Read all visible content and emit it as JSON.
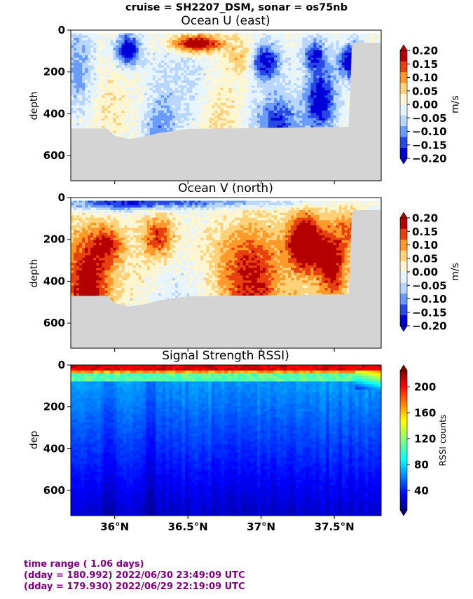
{
  "suptitle": "cruise = SH2207_DSM,  sonar = os75nb",
  "footer": {
    "line1": "time range ( 1.06 days)",
    "line2": "(dday = 180.992) 2022/06/30 23:49:09 UTC",
    "line3": "(dday = 179.930) 2022/06/29 22:19:09 UTC"
  },
  "colors": {
    "nodata": "#d4d4d4",
    "diverging_levels": [
      "#0000d8",
      "#2848e8",
      "#6a9cff",
      "#b8d6ff",
      "#e6f4ff",
      "#fff6d0",
      "#ffd27a",
      "#ff9a2a",
      "#e8400f",
      "#b40000"
    ],
    "jet": [
      "#00007f",
      "#0000ff",
      "#007fff",
      "#00ffff",
      "#7fff7f",
      "#ffff00",
      "#ff7f00",
      "#ff0000",
      "#7f0000"
    ]
  },
  "chart_data": [
    {
      "type": "heatmap",
      "title": "Ocean U (east)",
      "xlabel": "",
      "ylabel": "depth",
      "xlim": [
        35.7,
        37.82
      ],
      "ylim": [
        720,
        0
      ],
      "yticks": [
        "0",
        "200",
        "400",
        "600"
      ],
      "colorbar": {
        "label": "m/s",
        "vmin": -0.2,
        "vmax": 0.2,
        "ticks": [
          "0.20",
          "0.15",
          "0.10",
          "0.05",
          "0.00",
          "−0.05",
          "−0.10",
          "−0.15",
          "−0.20"
        ]
      },
      "bottom_depth_profile": [
        [
          35.7,
          470
        ],
        [
          35.95,
          470
        ],
        [
          36.0,
          505
        ],
        [
          36.1,
          520
        ],
        [
          36.2,
          510
        ],
        [
          36.3,
          492
        ],
        [
          36.5,
          472
        ],
        [
          37.0,
          468
        ],
        [
          37.6,
          462
        ],
        [
          37.62,
          60
        ],
        [
          37.82,
          60
        ]
      ]
    },
    {
      "type": "heatmap",
      "title": "Ocean V (north)",
      "xlabel": "",
      "ylabel": "depth",
      "xlim": [
        35.7,
        37.82
      ],
      "ylim": [
        720,
        0
      ],
      "yticks": [
        "0",
        "200",
        "400",
        "600"
      ],
      "colorbar": {
        "label": "m/s",
        "vmin": -0.2,
        "vmax": 0.2,
        "ticks": [
          "0.20",
          "0.15",
          "0.10",
          "0.05",
          "0.00",
          "−0.05",
          "−0.10",
          "−0.15",
          "−0.20"
        ]
      },
      "bottom_depth_profile": [
        [
          35.7,
          470
        ],
        [
          35.95,
          470
        ],
        [
          36.0,
          505
        ],
        [
          36.1,
          520
        ],
        [
          36.2,
          510
        ],
        [
          36.3,
          492
        ],
        [
          36.5,
          472
        ],
        [
          37.0,
          468
        ],
        [
          37.6,
          462
        ],
        [
          37.62,
          60
        ],
        [
          37.82,
          60
        ]
      ]
    },
    {
      "type": "heatmap",
      "title": "Signal Strength RSSI)",
      "xlabel": "",
      "ylabel": "dep",
      "xlim": [
        35.7,
        37.82
      ],
      "ylim": [
        720,
        0
      ],
      "yticks": [
        "0",
        "200",
        "400",
        "600"
      ],
      "xticks": [
        "36°N",
        "36.5°N",
        "37°N",
        "37.5°N"
      ],
      "colorbar": {
        "label": "RSSI counts",
        "vmin": 10,
        "vmax": 225,
        "ticks": [
          "200",
          "160",
          "120",
          "80",
          "40"
        ]
      }
    }
  ]
}
